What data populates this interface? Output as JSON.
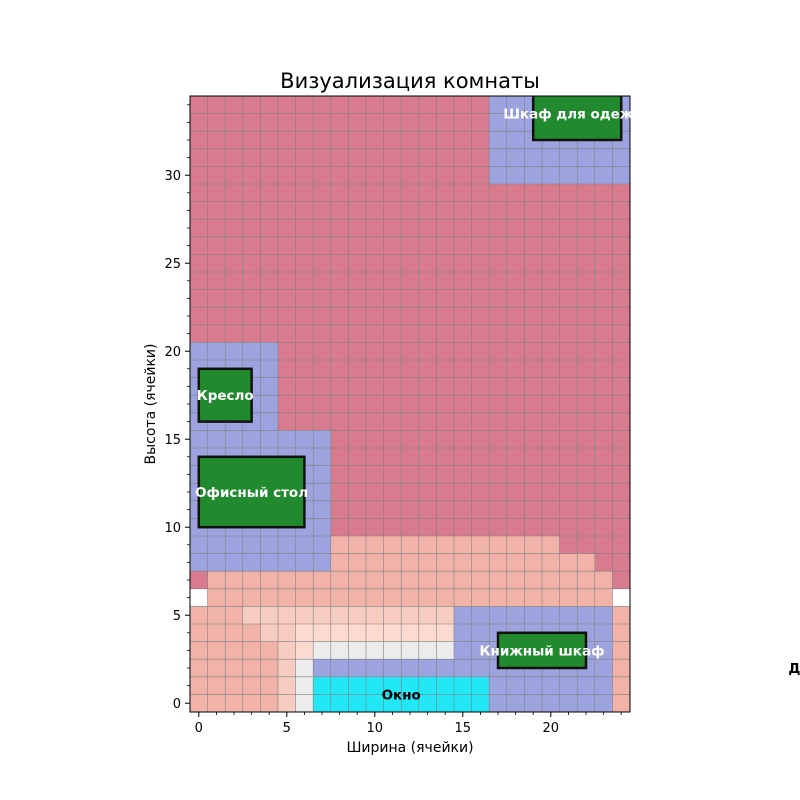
{
  "chart_data": {
    "type": "heatmap",
    "title": "Визуализация комнаты",
    "xlabel": "Ширина (ячейки)",
    "ylabel": "Высота (ячейки)",
    "xlim": [
      -0.5,
      24.5
    ],
    "ylim": [
      -0.5,
      34.5
    ],
    "xticks": [
      0,
      5,
      10,
      15,
      20
    ],
    "yticks": [
      0,
      5,
      10,
      15,
      20,
      25,
      30
    ],
    "grid": true,
    "colors": {
      "rose": "#d87b8e",
      "lavender": "#9ca3de",
      "salmon": "#f1b3a8",
      "peach": "#f8cdc1",
      "blush": "#fcdad0",
      "light_gray": "#ececec",
      "window": "#22e8f5",
      "furniture": "#218a2e",
      "furniture_border": "#111111",
      "grid": "#808080"
    },
    "cell_regions": [
      {
        "x0": 0,
        "x1": 25,
        "y0": 7,
        "y1": 35,
        "color": "rose"
      },
      {
        "x0": 0,
        "x1": 8,
        "y0": 8,
        "y1": 16,
        "color": "lavender"
      },
      {
        "x0": 0,
        "x1": 5,
        "y0": 16,
        "y1": 21,
        "color": "lavender"
      },
      {
        "x0": 17,
        "x1": 25,
        "y0": 30,
        "y1": 35,
        "color": "lavender"
      },
      {
        "x0": 8,
        "x1": 21,
        "y0": 8,
        "y1": 10,
        "color": "salmon"
      },
      {
        "x0": 21,
        "x1": 23,
        "y0": 8,
        "y1": 9,
        "color": "salmon"
      },
      {
        "x0": 1,
        "x1": 24,
        "y0": 6,
        "y1": 8,
        "color": "salmon"
      },
      {
        "x0": 0,
        "x1": 25,
        "y0": 0,
        "y1": 6,
        "color": "salmon"
      },
      {
        "x0": 3,
        "x1": 15,
        "y0": 5,
        "y1": 6,
        "color": "peach"
      },
      {
        "x0": 4,
        "x1": 15,
        "y0": 4,
        "y1": 5,
        "color": "peach"
      },
      {
        "x0": 5,
        "x1": 15,
        "y0": 3,
        "y1": 4,
        "color": "peach"
      },
      {
        "x0": 5,
        "x1": 7,
        "y0": 0,
        "y1": 3,
        "color": "peach"
      },
      {
        "x0": 6,
        "x1": 15,
        "y0": 4,
        "y1": 5,
        "color": "blush"
      },
      {
        "x0": 6,
        "x1": 7,
        "y0": 3,
        "y1": 4,
        "color": "blush"
      },
      {
        "x0": 7,
        "x1": 15,
        "y0": 3,
        "y1": 4,
        "color": "light_gray"
      },
      {
        "x0": 6,
        "x1": 7,
        "y0": 0,
        "y1": 3,
        "color": "light_gray"
      },
      {
        "x0": 7,
        "x1": 24,
        "y0": 2,
        "y1": 3,
        "color": "lavender"
      },
      {
        "x0": 15,
        "x1": 24,
        "y0": 3,
        "y1": 6,
        "color": "lavender"
      },
      {
        "x0": 17,
        "x1": 24,
        "y0": 0,
        "y1": 2,
        "color": "lavender"
      },
      {
        "x0": 7,
        "x1": 17,
        "y0": 0,
        "y1": 2,
        "color": "window"
      }
    ],
    "objects": [
      {
        "name": "Шкаф для одежды",
        "x0": 19,
        "x1": 24,
        "y0": 32,
        "y1": 35
      },
      {
        "name": "Кресло",
        "x0": 0,
        "x1": 3,
        "y0": 16,
        "y1": 19
      },
      {
        "name": "Офисный стол",
        "x0": 0,
        "x1": 6,
        "y0": 10,
        "y1": 14
      },
      {
        "name": "Книжный шкаф",
        "x0": 17,
        "x1": 22,
        "y0": 2,
        "y1": 4
      }
    ],
    "labels": [
      {
        "text": "Шкаф для одежды",
        "x": 17.3,
        "y": 33.5,
        "color": "#ffffff",
        "anchor": "start"
      },
      {
        "text": "Кресло",
        "x": 1.5,
        "y": 17.5,
        "color": "#ffffff",
        "anchor": "middle"
      },
      {
        "text": "Офисный стол",
        "x": 3.0,
        "y": 12.0,
        "color": "#ffffff",
        "anchor": "middle"
      },
      {
        "text": "Книжный шкаф",
        "x": 19.5,
        "y": 3.0,
        "color": "#ffffff",
        "anchor": "middle"
      },
      {
        "text": "Окно",
        "x": 11.5,
        "y": 0.5,
        "color": "#000000",
        "anchor": "middle"
      },
      {
        "text": "Дверь",
        "x": 33.5,
        "y": 2.0,
        "color": "#000000",
        "anchor": "start"
      }
    ]
  }
}
